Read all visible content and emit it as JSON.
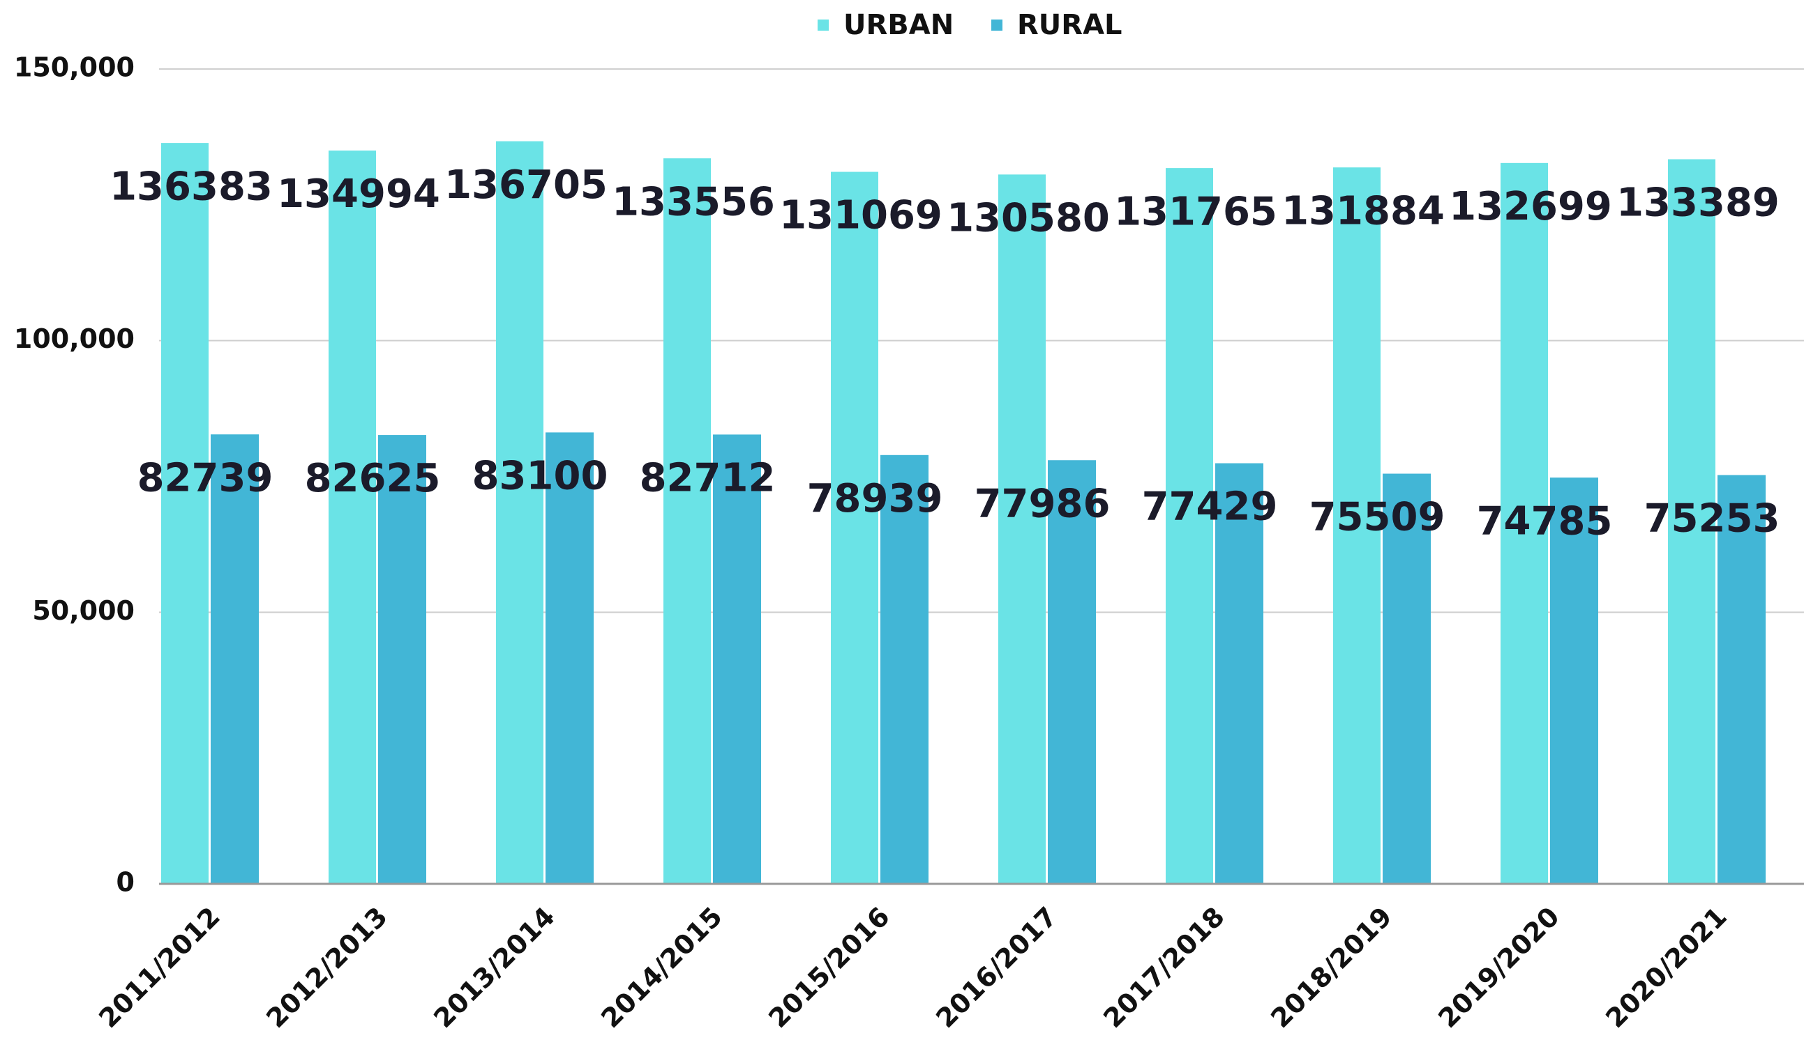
{
  "chart_data": {
    "type": "bar",
    "categories": [
      "2011/2012",
      "2012/2013",
      "2013/2014",
      "2014/2015",
      "2015/2016",
      "2016/2017",
      "2017/2018",
      "2018/2019",
      "2019/2020",
      "2020/2021"
    ],
    "series": [
      {
        "name": "URBAN",
        "color": "#6ae3e6",
        "values": [
          136383,
          134994,
          136705,
          133556,
          131069,
          130580,
          131765,
          131884,
          132699,
          133389
        ]
      },
      {
        "name": "RURAL",
        "color": "#42b6d6",
        "values": [
          82739,
          82625,
          83100,
          82712,
          78939,
          77986,
          77429,
          75509,
          74785,
          75253
        ]
      }
    ],
    "ylim": [
      0,
      150000
    ],
    "yticks": [
      0,
      {
        "value": 50000,
        "label": "50,000"
      },
      {
        "value": 100000,
        "label": "100,000"
      },
      {
        "value": 150000,
        "label": "150,000"
      }
    ],
    "grid": true,
    "legend": "top"
  }
}
